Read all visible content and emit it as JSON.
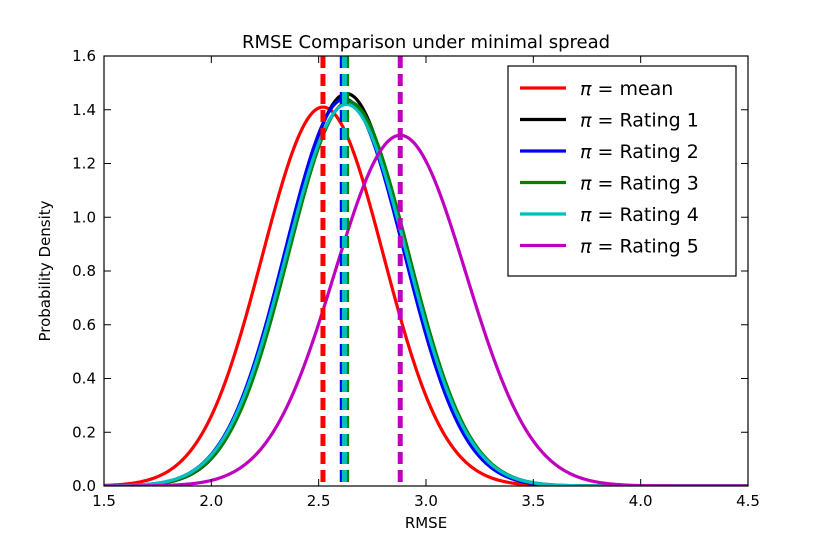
{
  "chart_data": {
    "type": "line",
    "title": "RMSE Comparison under minimal spread",
    "xlabel": "RMSE",
    "ylabel": "Probability Density",
    "xlim": [
      1.5,
      4.5
    ],
    "ylim": [
      0.0,
      1.6
    ],
    "xticks": [
      "1.5",
      "2.0",
      "2.5",
      "3.0",
      "3.5",
      "4.0",
      "4.5"
    ],
    "yticks": [
      "0.0",
      "0.2",
      "0.4",
      "0.6",
      "0.8",
      "1.0",
      "1.2",
      "1.4",
      "1.6"
    ],
    "legend_position": "top-right",
    "series": [
      {
        "name": "mean",
        "label_prefix": "π",
        "label_suffix": "= mean",
        "color": "#ff0000",
        "mean": 2.52,
        "peak": 1.41,
        "sigma": 0.283
      },
      {
        "name": "Rating 1",
        "label_prefix": "π",
        "label_suffix": "= Rating 1",
        "color": "#000000",
        "mean": 2.63,
        "peak": 1.46,
        "sigma": 0.273
      },
      {
        "name": "Rating 2",
        "label_prefix": "π",
        "label_suffix": "= Rating 2",
        "color": "#0000ff",
        "mean": 2.62,
        "peak": 1.44,
        "sigma": 0.277
      },
      {
        "name": "Rating 3",
        "label_prefix": "π",
        "label_suffix": "= Rating 3",
        "color": "#008000",
        "mean": 2.64,
        "peak": 1.43,
        "sigma": 0.279
      },
      {
        "name": "Rating 4",
        "label_prefix": "π",
        "label_suffix": "= Rating 4",
        "color": "#00bfbf",
        "mean": 2.63,
        "peak": 1.42,
        "sigma": 0.281
      },
      {
        "name": "Rating 5",
        "label_prefix": "π",
        "label_suffix": "= Rating 5",
        "color": "#bf00bf",
        "mean": 2.88,
        "peak": 1.305,
        "sigma": 0.306
      }
    ],
    "vlines": [
      {
        "x": 2.52,
        "color": "#ff0000"
      },
      {
        "x": 2.61,
        "color": "#0000ff"
      },
      {
        "x": 2.63,
        "color": "#008000"
      },
      {
        "x": 2.62,
        "color": "#00bfbf"
      },
      {
        "x": 2.88,
        "color": "#bf00bf"
      }
    ]
  }
}
